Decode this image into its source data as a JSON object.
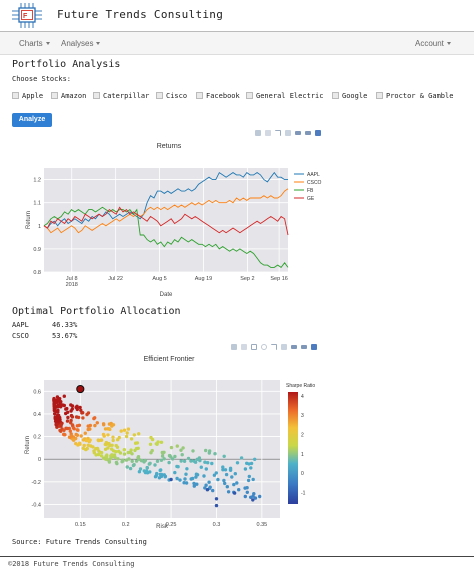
{
  "header": {
    "brand": "Future Trends Consulting",
    "logo_icon": "circuit-logo-icon"
  },
  "nav": {
    "charts": "Charts",
    "analyses": "Analyses",
    "account": "Account"
  },
  "page": {
    "title": "Portfolio Analysis",
    "choose_label": "Choose Stocks:",
    "stocks": [
      "Apple",
      "Amazon",
      "Caterpillar",
      "Cisco",
      "Facebook",
      "General Electric",
      "Google",
      "Proctor & Gamble"
    ],
    "analyze_button": "Analyze"
  },
  "allocation": {
    "title": "Optimal Portfolio Allocation",
    "rows": [
      {
        "ticker": "AAPL",
        "weight": "46.33%"
      },
      {
        "ticker": "CSCO",
        "weight": "53.67%"
      }
    ]
  },
  "source": "Source: Future Trends Consulting",
  "footer": "©2018 Future Trends Consulting",
  "colors": {
    "accent": "#2f7fd4",
    "aapl": "#1f77b4",
    "csco": "#ff7f0e",
    "fb": "#2ca02c",
    "ge": "#d62728"
  },
  "chart_data": [
    {
      "type": "line",
      "title": "Returns",
      "xlabel": "Date",
      "ylabel": "Return",
      "x_ticks": [
        "Jul 8\n2018",
        "Jul 22",
        "Aug 5",
        "Aug 19",
        "Sep 2",
        "Sep 16"
      ],
      "ylim": [
        0.8,
        1.25
      ],
      "y_ticks": [
        0.8,
        0.9,
        1,
        1.1,
        1.2
      ],
      "legend": "right",
      "series": [
        {
          "name": "AAPL",
          "color": "#1f77b4",
          "values": [
            1.0,
            0.99,
            1.01,
            1.02,
            1.0,
            1.02,
            1.03,
            1.01,
            1.02,
            1.03,
            1.02,
            1.01,
            1.03,
            1.02,
            1.04,
            1.03,
            1.05,
            1.04,
            1.06,
            1.05,
            1.03,
            1.04,
            1.05,
            1.04,
            1.05,
            1.06,
            1.05,
            1.04,
            1.03,
            1.05,
            1.1,
            1.13,
            1.12,
            1.15,
            1.15,
            1.14,
            1.15,
            1.14,
            1.15,
            1.16,
            1.15,
            1.15,
            1.16,
            1.15,
            1.16,
            1.18,
            1.19,
            1.2,
            1.21,
            1.2,
            1.2,
            1.23,
            1.22,
            1.21,
            1.22,
            1.23,
            1.22,
            1.22,
            1.21,
            1.23,
            1.22,
            1.22,
            1.23,
            1.22,
            1.2,
            1.19,
            1.21,
            1.23,
            1.21,
            1.21,
            1.2,
            1.2
          ]
        },
        {
          "name": "CSCO",
          "color": "#ff7f0e",
          "values": [
            1.0,
            0.99,
            0.97,
            0.98,
            0.99,
            0.97,
            0.98,
            0.99,
            1.0,
            0.99,
            0.97,
            0.98,
            1.0,
            0.99,
            0.98,
            0.99,
            1.0,
            1.01,
            1.0,
            1.01,
            1.02,
            1.03,
            1.02,
            1.03,
            1.04,
            1.05,
            1.04,
            1.05,
            1.04,
            1.05,
            1.07,
            1.08,
            1.07,
            1.08,
            1.07,
            1.08,
            1.07,
            1.08,
            1.09,
            1.08,
            1.09,
            1.08,
            1.09,
            1.1,
            1.09,
            1.1,
            1.09,
            1.1,
            1.11,
            1.1,
            1.11,
            1.1,
            1.1,
            1.1,
            1.11,
            1.1,
            1.12,
            1.11,
            1.12,
            1.11,
            1.12,
            1.12,
            1.12,
            1.12,
            1.13,
            1.12,
            1.13,
            1.12,
            1.12,
            1.13,
            1.15,
            1.16
          ]
        },
        {
          "name": "FB",
          "color": "#2ca02c",
          "values": [
            1.0,
            1.01,
            1.03,
            1.04,
            1.03,
            1.04,
            1.06,
            1.05,
            1.07,
            1.06,
            1.07,
            1.06,
            1.05,
            1.07,
            1.07,
            1.06,
            1.07,
            1.08,
            1.07,
            1.06,
            1.07,
            1.06,
            1.07,
            1.07,
            1.06,
            1.07,
            1.05,
            1.07,
            0.96,
            0.96,
            0.94,
            0.93,
            0.94,
            0.92,
            0.93,
            0.91,
            0.93,
            0.92,
            0.94,
            0.93,
            0.95,
            0.94,
            0.93,
            0.94,
            0.93,
            0.92,
            0.92,
            0.91,
            0.92,
            0.91,
            0.92,
            0.9,
            0.91,
            0.9,
            0.89,
            0.9,
            0.89,
            0.9,
            0.89,
            0.88,
            0.89,
            0.88,
            0.86,
            0.84,
            0.83,
            0.83,
            0.82,
            0.82,
            0.83,
            0.82,
            0.84,
            0.82
          ]
        },
        {
          "name": "GE",
          "color": "#d62728",
          "values": [
            1.0,
            0.99,
            1.02,
            1.01,
            1.03,
            1.02,
            1.01,
            1.03,
            1.02,
            1.04,
            1.03,
            1.02,
            1.05,
            1.04,
            1.03,
            1.04,
            1.05,
            1.04,
            1.05,
            1.07,
            1.06,
            1.05,
            1.08,
            1.06,
            1.07,
            1.05,
            1.06,
            1.05,
            1.04,
            1.03,
            1.02,
            1.04,
            1.03,
            1.02,
            1.0,
            1.01,
            1.02,
            1.03,
            1.01,
            1.02,
            1.03,
            1.05,
            1.04,
            1.03,
            1.04,
            1.03,
            1.02,
            1.01,
            1.0,
            0.99,
            0.98,
            0.97,
            0.98,
            0.97,
            0.98,
            0.99,
            0.98,
            0.97,
            0.98,
            0.99,
            1.0,
            1.01,
            1.02,
            1.01,
            1.02,
            1.03,
            1.04,
            1.03,
            1.02,
            1.04,
            1.03,
            0.96
          ]
        }
      ]
    },
    {
      "type": "scatter",
      "title": "Efficient Frontier",
      "xlabel": "Risk",
      "ylabel": "Return",
      "x_ticks": [
        0.15,
        0.2,
        0.25,
        0.3,
        0.35
      ],
      "y_ticks": [
        -0.4,
        -0.2,
        0,
        0.2,
        0.4,
        0.6
      ],
      "xlim": [
        0.11,
        0.37
      ],
      "ylim": [
        -0.52,
        0.7
      ],
      "colorbar": {
        "title": "Sharpe Ratio",
        "ticks": [
          -1,
          0,
          1,
          2,
          3,
          4
        ],
        "range": [
          -1.6,
          4.2
        ]
      },
      "optimal_point": {
        "x": 0.15,
        "y": 0.62,
        "color": "#a01010"
      },
      "frontier": {
        "point_count": 400,
        "upper_edge": [
          [
            0.121,
            0.52
          ],
          [
            0.13,
            0.6
          ],
          [
            0.145,
            0.62
          ],
          [
            0.16,
            0.58
          ],
          [
            0.2,
            0.36
          ]
        ],
        "lower_edge": [
          [
            0.121,
            0.52
          ],
          [
            0.122,
            0.3
          ],
          [
            0.14,
            0.15
          ],
          [
            0.18,
            -0.02
          ],
          [
            0.23,
            -0.15
          ],
          [
            0.3,
            -0.29
          ],
          [
            0.355,
            -0.36
          ]
        ],
        "sparse_tail": [
          [
            0.25,
            -0.18
          ],
          [
            0.29,
            -0.27
          ],
          [
            0.3,
            -0.35
          ],
          [
            0.32,
            -0.3
          ],
          [
            0.34,
            -0.36
          ],
          [
            0.3,
            -0.41
          ]
        ]
      }
    }
  ]
}
